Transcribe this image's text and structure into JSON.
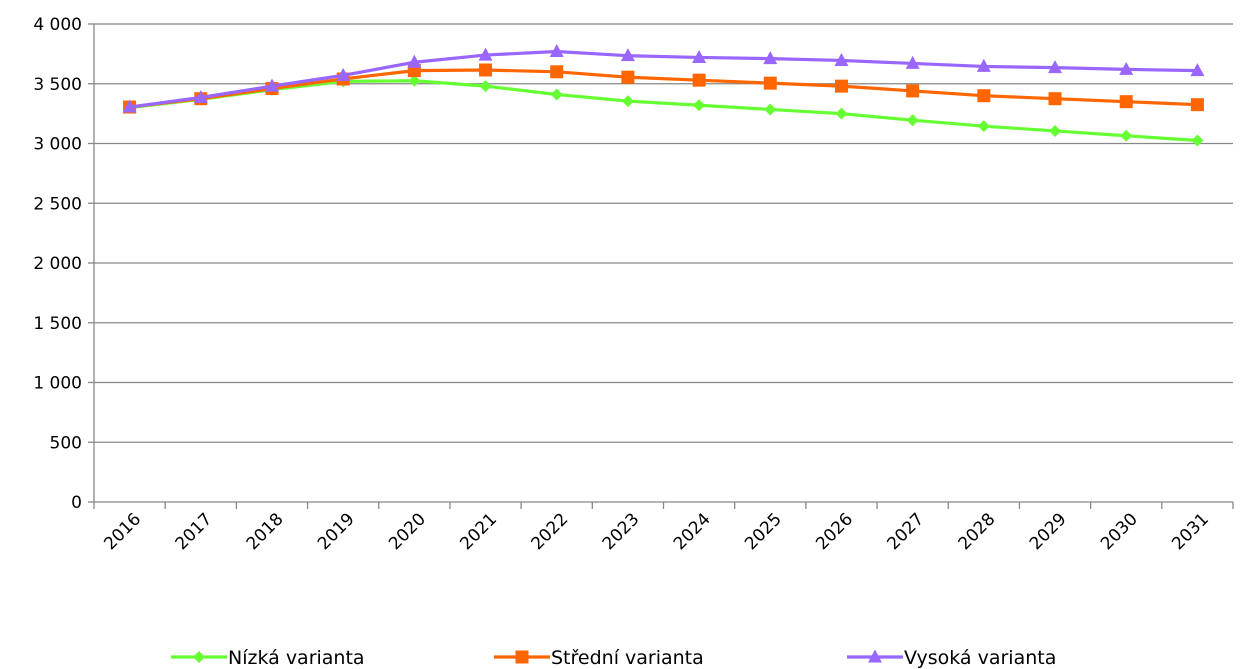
{
  "chart_data": {
    "type": "line",
    "title": "",
    "xlabel": "",
    "ylabel": "",
    "categories": [
      "2016",
      "2017",
      "2018",
      "2019",
      "2020",
      "2021",
      "2022",
      "2023",
      "2024",
      "2025",
      "2026",
      "2027",
      "2028",
      "2029",
      "2030",
      "2031"
    ],
    "ylim": [
      0,
      4000
    ],
    "yticks": [
      0,
      500,
      1000,
      1500,
      2000,
      2500,
      3000,
      3500,
      4000
    ],
    "ytick_labels": [
      "0",
      "500",
      "1 000",
      "1 500",
      "2 000",
      "2 500",
      "3 000",
      "3 500",
      "4 000"
    ],
    "grid": "horizontal",
    "legend_position": "bottom",
    "series": [
      {
        "name": "Nízká varianta",
        "color": "#66ff33",
        "marker": "diamond",
        "values": [
          3300,
          3370,
          3450,
          3520,
          3525,
          3480,
          3410,
          3355,
          3320,
          3285,
          3250,
          3195,
          3145,
          3105,
          3065,
          3025
        ]
      },
      {
        "name": "Střední varianta",
        "color": "#ff6600",
        "marker": "square",
        "values": [
          3305,
          3375,
          3460,
          3540,
          3610,
          3615,
          3600,
          3555,
          3530,
          3505,
          3480,
          3440,
          3400,
          3375,
          3350,
          3325
        ]
      },
      {
        "name": "Vysoká varianta",
        "color": "#9966ff",
        "marker": "triangle",
        "values": [
          3305,
          3385,
          3480,
          3570,
          3680,
          3740,
          3770,
          3735,
          3720,
          3710,
          3695,
          3670,
          3645,
          3635,
          3620,
          3610
        ]
      }
    ]
  }
}
